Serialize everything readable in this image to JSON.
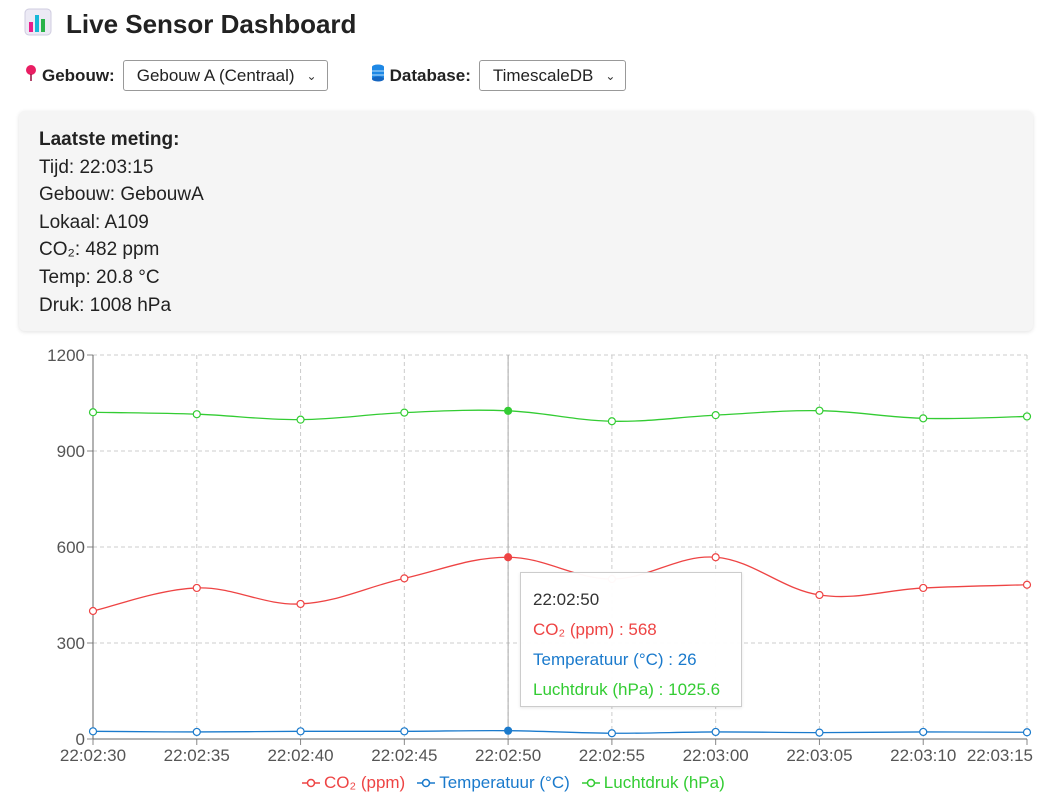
{
  "header": {
    "icon": "bar-chart-icon",
    "title": "Live Sensor Dashboard"
  },
  "controls": {
    "building": {
      "icon": "pin-icon",
      "label": "Gebouw:",
      "value": "Gebouw A (Centraal)"
    },
    "database": {
      "icon": "database-icon",
      "label": "Database:",
      "value": "TimescaleDB"
    }
  },
  "latest": {
    "title": "Laatste meting:",
    "lines": [
      "Tijd: 22:03:15",
      "Gebouw: GebouwA",
      "Lokaal: A109",
      "CO₂: 482 ppm",
      "Temp: 20.8 °C",
      "Druk: 1008 hPa"
    ]
  },
  "tooltip": {
    "time": "22:02:50",
    "lines": [
      "CO₂ (ppm) : 568",
      "Temperatuur (°C) : 26",
      "Luchtdruk (hPa) : 1025.6"
    ]
  },
  "colors": {
    "co2": "#ee4444",
    "temp": "#1a7acc",
    "pressure": "#33cc33"
  },
  "chart_data": {
    "type": "line",
    "x": [
      "22:02:30",
      "22:02:35",
      "22:02:40",
      "22:02:45",
      "22:02:50",
      "22:02:55",
      "22:03:00",
      "22:03:05",
      "22:03:10",
      "22:03:15"
    ],
    "ylim": [
      0,
      1200
    ],
    "yticks": [
      0,
      300,
      600,
      900,
      1200
    ],
    "grid": true,
    "legend": "bottom-center",
    "highlight_index": 4,
    "series": [
      {
        "name": "CO₂ (ppm)",
        "values": [
          400,
          472,
          422,
          502,
          568,
          500,
          568,
          450,
          472,
          482
        ]
      },
      {
        "name": "Temperatuur (°C)",
        "values": [
          24,
          22,
          24,
          24,
          26,
          18,
          22,
          20,
          22,
          21
        ]
      },
      {
        "name": "Luchtdruk (hPa)",
        "values": [
          1021,
          1015,
          998,
          1020,
          1025.6,
          993,
          1012,
          1026,
          1002,
          1008
        ]
      }
    ]
  }
}
